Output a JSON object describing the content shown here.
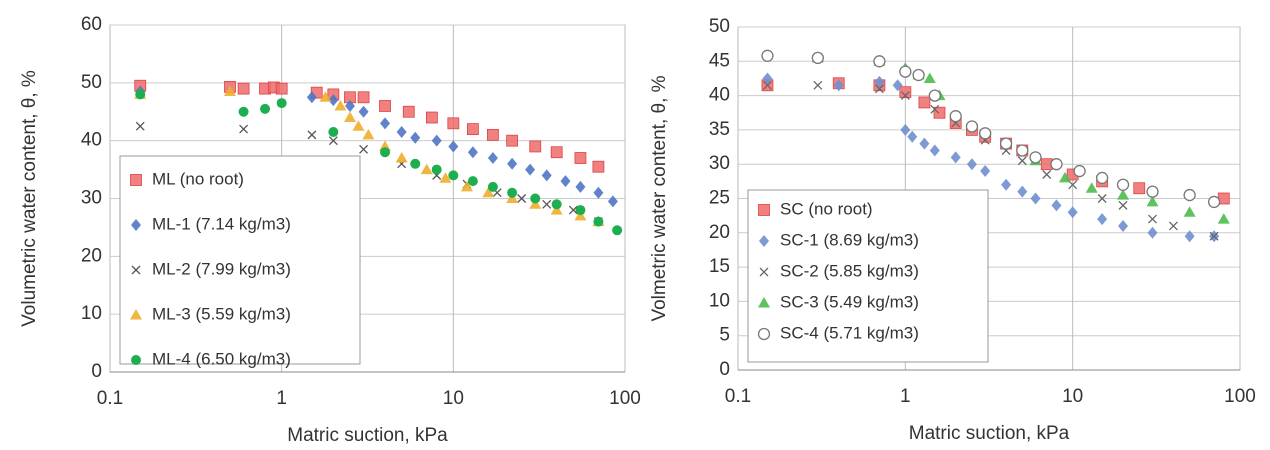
{
  "chart_data": [
    {
      "type": "scatter",
      "x_label": "Matric suction, kPa",
      "y_label": "Volumetric water content, θ, %",
      "xlim": [
        0.1,
        100
      ],
      "xticks": [
        0.1,
        1,
        10,
        100
      ],
      "xscale": "log",
      "ylim": [
        0,
        60
      ],
      "yticks": [
        0,
        10,
        20,
        30,
        40,
        50,
        60
      ],
      "grid": true,
      "legend": "lower left",
      "series": [
        {
          "name": "ML (no root)",
          "color": "#ef6b6b",
          "marker": "square",
          "x": [
            0.15,
            0.5,
            0.6,
            0.8,
            0.9,
            1.0,
            1.6,
            2.0,
            2.5,
            3.0,
            4.0,
            5.5,
            7.5,
            10,
            13,
            17,
            22,
            30,
            40,
            55,
            70
          ],
          "values": [
            49.5,
            49.3,
            49,
            49,
            49.2,
            49,
            48.3,
            48,
            47.5,
            47.5,
            46,
            45,
            44,
            43,
            42,
            41,
            40,
            39,
            38,
            37,
            35.5
          ]
        },
        {
          "name": "ML-1 (7.14 kg/m3)",
          "color": "#4f76c4",
          "marker": "diamond",
          "x": [
            0.15,
            1.5,
            2,
            2.5,
            3,
            4,
            5,
            6,
            8,
            10,
            13,
            17,
            22,
            28,
            35,
            45,
            55,
            70,
            85
          ],
          "values": [
            48.5,
            47.5,
            47,
            46,
            45,
            43,
            41.5,
            40.5,
            40,
            39,
            38,
            37,
            36,
            35,
            34,
            33,
            32,
            31,
            29.5
          ]
        },
        {
          "name": "ML-2 (7.99 kg/m3)",
          "color": "#555555",
          "marker": "x",
          "x": [
            0.15,
            0.6,
            1.5,
            2,
            3,
            5,
            8,
            12,
            18,
            25,
            35,
            50,
            70
          ],
          "values": [
            42.5,
            42,
            41,
            40,
            38.5,
            36,
            34,
            32.5,
            31,
            30,
            29,
            28,
            26
          ]
        },
        {
          "name": "ML-3 (5.59 kg/m3)",
          "color": "#f0ae2c",
          "marker": "triangle",
          "x": [
            0.15,
            0.5,
            1.8,
            2.2,
            2.5,
            2.8,
            3.2,
            4,
            5,
            7,
            9,
            12,
            16,
            22,
            30,
            40,
            55,
            70
          ],
          "values": [
            48,
            48.5,
            47.5,
            46,
            44,
            42.5,
            41,
            39,
            37,
            35,
            33.5,
            32,
            31,
            30,
            29,
            28,
            27,
            26
          ]
        },
        {
          "name": "ML-4 (6.50 kg/m3)",
          "color": "#1fae4f",
          "marker": "circle",
          "x": [
            0.15,
            0.6,
            0.8,
            1.0,
            2,
            4,
            6,
            8,
            10,
            13,
            17,
            22,
            30,
            40,
            55,
            70,
            90
          ],
          "values": [
            48,
            45,
            45.5,
            46.5,
            41.5,
            38,
            36,
            35,
            34,
            33,
            32,
            31,
            30,
            29,
            28,
            26,
            24.5
          ]
        }
      ]
    },
    {
      "type": "scatter",
      "x_label": "Matric suction, kPa",
      "y_label": "Volmetric water content, θ, %",
      "xlim": [
        0.1,
        100
      ],
      "xticks": [
        0.1,
        1,
        10,
        100
      ],
      "xscale": "log",
      "ylim": [
        0,
        50
      ],
      "yticks": [
        0,
        5,
        10,
        15,
        20,
        25,
        30,
        35,
        40,
        45,
        50
      ],
      "grid": true,
      "legend": "lower left",
      "series": [
        {
          "name": "SC (no root)",
          "color": "#ef6b6b",
          "marker": "square",
          "x": [
            0.15,
            0.4,
            0.7,
            1.0,
            1.3,
            1.6,
            2,
            2.5,
            3,
            4,
            5,
            7,
            10,
            15,
            25,
            80
          ],
          "values": [
            41.5,
            41.8,
            41.5,
            40.5,
            39,
            37.5,
            36,
            35,
            34,
            33,
            32,
            30,
            28.5,
            27.5,
            26.5,
            25
          ]
        },
        {
          "name": "SC-1 (8.69 kg/m3)",
          "color": "#6f8fd0",
          "marker": "diamond",
          "x": [
            0.15,
            0.4,
            0.7,
            0.9,
            1.0,
            1.1,
            1.3,
            1.5,
            2,
            2.5,
            3,
            4,
            5,
            6,
            8,
            10,
            15,
            20,
            30,
            50,
            70
          ],
          "values": [
            42.5,
            41.5,
            42,
            41.5,
            35,
            34,
            33,
            32,
            31,
            30,
            29,
            27,
            26,
            25,
            24,
            23,
            22,
            21,
            20,
            19.5,
            19.5
          ]
        },
        {
          "name": "SC-2 (5.85 kg/m3)",
          "color": "#666666",
          "marker": "x",
          "x": [
            0.15,
            0.3,
            0.7,
            1.0,
            1.5,
            2,
            3,
            4,
            5,
            7,
            10,
            15,
            20,
            30,
            40,
            70
          ],
          "values": [
            41.5,
            41.5,
            41,
            40,
            38,
            36,
            33.5,
            32,
            30.5,
            28.5,
            27,
            25,
            24,
            22,
            21,
            19.5
          ]
        },
        {
          "name": "SC-3 (5.49 kg/m3)",
          "color": "#4cbb4c",
          "marker": "triangle",
          "x": [
            0.3,
            0.7,
            1.0,
            1.2,
            1.4,
            1.6,
            2,
            3,
            4,
            6,
            9,
            13,
            20,
            30,
            50,
            80
          ],
          "values": [
            45.5,
            45,
            44,
            43,
            42.5,
            40,
            37,
            34.5,
            33,
            30.5,
            28,
            26.5,
            25.5,
            24.5,
            23,
            22
          ]
        },
        {
          "name": "SC-4 (5.71 kg/m3)",
          "color": "#777777",
          "marker": "open-circle",
          "x": [
            0.15,
            0.3,
            0.7,
            1.0,
            1.2,
            1.5,
            2,
            2.5,
            3,
            4,
            5,
            6,
            8,
            11,
            15,
            20,
            30,
            50,
            70
          ],
          "values": [
            45.8,
            45.5,
            45,
            43.5,
            43,
            40,
            37,
            35.5,
            34.5,
            33,
            32,
            31,
            30,
            29,
            28,
            27,
            26,
            25.5,
            24.5
          ]
        }
      ]
    }
  ]
}
